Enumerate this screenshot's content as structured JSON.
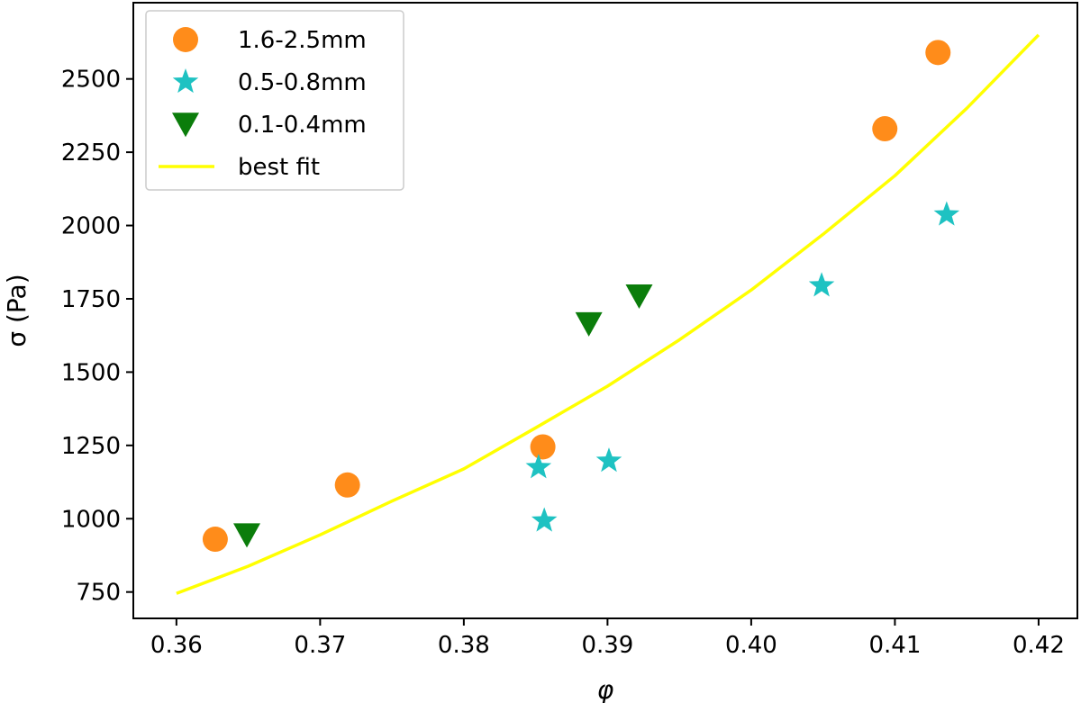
{
  "chart_data": {
    "type": "scatter",
    "xlabel": "φ",
    "ylabel": "σ (Pa)",
    "xlim": [
      0.357,
      0.4227
    ],
    "ylim": [
      660,
      2760
    ],
    "xticks": [
      0.36,
      0.37,
      0.38,
      0.39,
      0.4,
      0.41,
      0.42
    ],
    "xtick_labels": [
      "0.36",
      "0.37",
      "0.38",
      "0.39",
      "0.40",
      "0.41",
      "0.42"
    ],
    "yticks": [
      750,
      1000,
      1250,
      1500,
      1750,
      2000,
      2250,
      2500
    ],
    "ytick_labels": [
      "750",
      "1000",
      "1250",
      "1500",
      "1750",
      "2000",
      "2250",
      "2500"
    ],
    "legend_position": "top-left",
    "series": [
      {
        "name": "1.6-2.5mm",
        "marker": "circle",
        "color": "#ff8c1a",
        "x": [
          0.3627,
          0.3719,
          0.3855,
          0.4093,
          0.413
        ],
        "y": [
          930,
          1115,
          1245,
          2330,
          2590
        ]
      },
      {
        "name": "0.5-0.8mm",
        "marker": "star",
        "color": "#1ec2c2",
        "x": [
          0.3852,
          0.3856,
          0.3901,
          0.4049,
          0.4136
        ],
        "y": [
          1175,
          993,
          1197,
          1795,
          2037
        ]
      },
      {
        "name": "0.1-0.4mm",
        "marker": "triangle-down",
        "color": "#0b7d0b",
        "x": [
          0.3649,
          0.3887,
          0.3922
        ],
        "y": [
          945,
          1665,
          1760
        ]
      },
      {
        "name": "best fit",
        "marker": "line",
        "color": "#ffff00",
        "x": [
          0.36,
          0.365,
          0.37,
          0.375,
          0.38,
          0.385,
          0.39,
          0.395,
          0.4,
          0.405,
          0.41,
          0.415,
          0.42
        ],
        "y": [
          745,
          838,
          945,
          1060,
          1170,
          1310,
          1452,
          1610,
          1780,
          1970,
          2170,
          2400,
          2650
        ]
      }
    ]
  }
}
